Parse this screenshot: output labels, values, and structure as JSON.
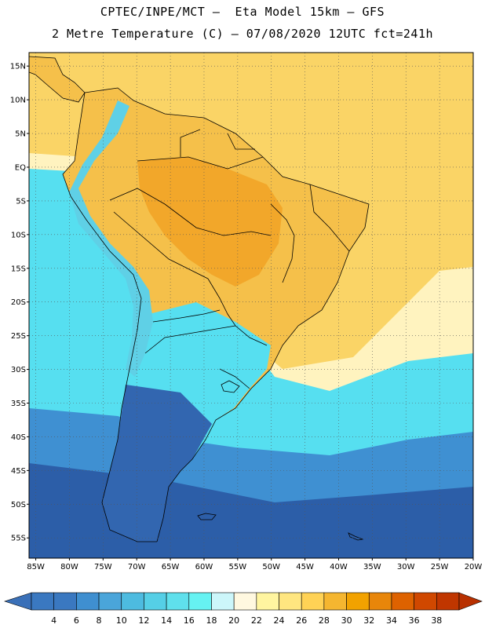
{
  "header": {
    "line1": "CPTEC/INPE/MCT –  Eta Model 15km – GFS",
    "line2": "2 Metre Temperature (C) – 07/08/2020 12UTC fct=241h"
  },
  "map": {
    "lat_ticks": [
      "15N",
      "10N",
      "5N",
      "EQ",
      "5S",
      "10S",
      "15S",
      "20S",
      "25S",
      "30S",
      "35S",
      "40S",
      "45S",
      "50S",
      "55S"
    ],
    "lon_ticks": [
      "85W",
      "80W",
      "75W",
      "70W",
      "65W",
      "60W",
      "55W",
      "50W",
      "45W",
      "40W",
      "35W",
      "30W",
      "25W",
      "20W"
    ],
    "lat_range": [
      17,
      -58
    ],
    "lon_range": [
      -86,
      -20
    ]
  },
  "colorbar": {
    "labels": [
      "4",
      "6",
      "8",
      "10",
      "12",
      "14",
      "16",
      "18",
      "20",
      "22",
      "24",
      "26",
      "28",
      "30",
      "32",
      "34",
      "36",
      "38"
    ],
    "colors": [
      "#3a78c0",
      "#3a78c0",
      "#3f8fd0",
      "#4aa5da",
      "#4dbbe0",
      "#55cfe6",
      "#5fe0ec",
      "#66f2f2",
      "#ccf6fa",
      "#fff8e0",
      "#fff5a0",
      "#ffe680",
      "#ffd255",
      "#f5b630",
      "#f2a200",
      "#e8860a",
      "#de6200",
      "#d04800",
      "#c03600"
    ],
    "low_color": "#3a70b8",
    "high_color": "#b83000"
  },
  "palette": {
    "ocean_cold": "#2c5ea8",
    "ocean_mid": "#3f90d2",
    "ocean_cyan": "#56dff0",
    "ocean_warm": "#fff5c0",
    "tropics_sea": "#fad466",
    "land_hot": "#f2a72a",
    "land_warm": "#f5c04a",
    "andes": "#5fd0e6",
    "patagonia": "#3266b0",
    "border": "#000000"
  }
}
